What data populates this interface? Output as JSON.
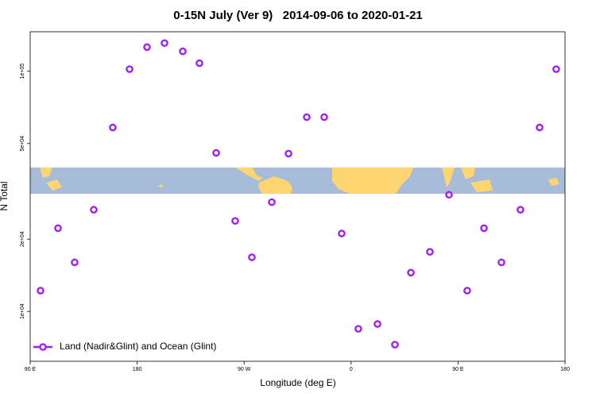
{
  "chart_data": {
    "type": "scatter",
    "title": "0-15N July (Ver 9)   2014-09-06 to 2020-01-21",
    "x_label": "Longitude (deg E)",
    "y_label": "N Total",
    "xlim": [
      90,
      540
    ],
    "xticks": [
      {
        "value": 90,
        "label": "90 E"
      },
      180,
      {
        "value": 270,
        "label": "90 W"
      },
      {
        "value": 360,
        "label": "0"
      },
      {
        "value": 450,
        "label": "90 E"
      },
      {
        "value": 540,
        "label": "180"
      }
    ],
    "ylim": [
      6200,
      146000
    ],
    "log_y": true,
    "yticks": [
      {
        "value": 10000,
        "label": "1e+04"
      },
      {
        "value": 20000,
        "label": "2e+04"
      },
      {
        "value": 50000,
        "label": "5e+04"
      },
      {
        "value": 100000,
        "label": "1e+05"
      }
    ],
    "legend": "bottom-left",
    "series": [
      {
        "name": "Land (Nadir&Glint) and Ocean (Glint)",
        "color": "#a020f0",
        "x": [
          98.7,
          113.4,
          127.4,
          143.5,
          159.5,
          173.6,
          188.3,
          203,
          218.4,
          232.4,
          246.5,
          262.5,
          276.5,
          293.3,
          307.3,
          322.7,
          337.4,
          352.1,
          366.1,
          382.2,
          396.9,
          410.3,
          426.3,
          442.4,
          457.7,
          471.8,
          486.5,
          502.5,
          518.6,
          532.6
        ],
        "values": [
          12200,
          22200,
          16000,
          26500,
          58300,
          102000,
          126000,
          131000,
          121000,
          108000,
          45700,
          23800,
          16800,
          28500,
          45400,
          64400,
          64400,
          21100,
          8460,
          8860,
          7270,
          14500,
          17700,
          30600,
          12200,
          22200,
          16000,
          26500,
          58300,
          102000
        ]
      }
    ]
  }
}
